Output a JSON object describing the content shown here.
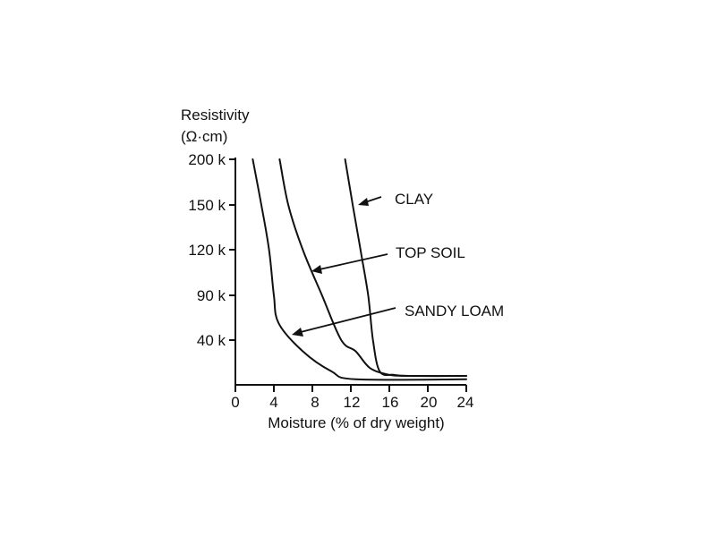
{
  "chart_data": {
    "type": "line",
    "ylabel": "Resistivity",
    "yunit": "(Ω·cm)",
    "xlabel": "Moisture (% of dry weight)",
    "x_ticks": [
      "0",
      "4",
      "8",
      "12",
      "16",
      "20",
      "24"
    ],
    "y_ticks": [
      "200 k",
      "150 k",
      "120 k",
      "90 k",
      "40 k"
    ],
    "xlim": [
      0,
      24
    ],
    "series": [
      {
        "name": "CLAY",
        "points": [
          [
            11.4,
            "200 k"
          ],
          [
            12.2,
            "150 k"
          ],
          [
            13.0,
            "120 k"
          ],
          [
            13.8,
            "90 k"
          ],
          [
            14.3,
            "40 k"
          ],
          [
            15.0,
            12
          ],
          [
            16.5,
            9
          ],
          [
            18,
            8
          ],
          [
            24,
            8
          ]
        ]
      },
      {
        "name": "TOP SOIL",
        "points": [
          [
            4.6,
            "200 k"
          ],
          [
            5.5,
            "150 k"
          ],
          [
            7.0,
            "120 k"
          ],
          [
            9.0,
            "90 k"
          ],
          [
            11.0,
            "40 k"
          ],
          [
            12.5,
            30
          ],
          [
            14.0,
            15
          ],
          [
            16.0,
            9
          ],
          [
            18,
            8
          ],
          [
            24,
            8
          ]
        ]
      },
      {
        "name": "SANDY LOAM",
        "points": [
          [
            1.8,
            "200 k"
          ],
          [
            2.7,
            "150 k"
          ],
          [
            3.5,
            "120 k"
          ],
          [
            4.0,
            "90 k"
          ],
          [
            4.5,
            55
          ],
          [
            7.0,
            30
          ],
          [
            10.0,
            12
          ],
          [
            12.5,
            5
          ],
          [
            24,
            5
          ]
        ]
      }
    ]
  }
}
